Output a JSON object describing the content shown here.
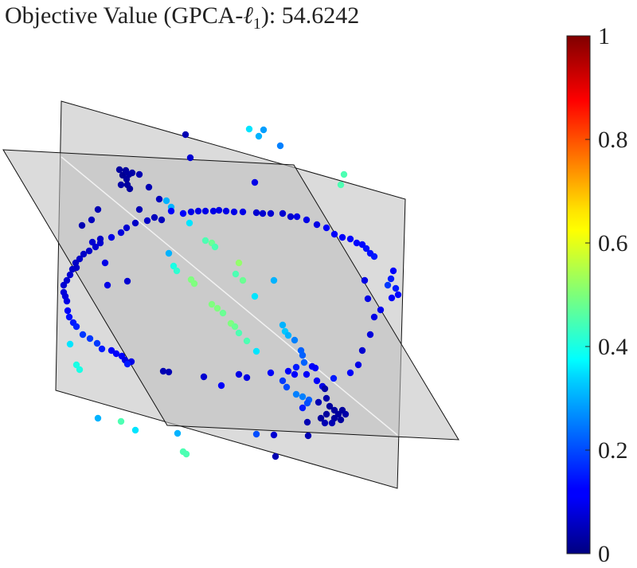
{
  "title": {
    "prefix": "Objective Value (GPCA-",
    "ell": "ℓ",
    "sub": "1",
    "suffix": "): 54.6242"
  },
  "chart_data": {
    "type": "scatter",
    "title": "Objective Value (GPCA-ℓ1): 54.6242",
    "xlabel": "",
    "ylabel": "",
    "grid": false,
    "colormap": "jet",
    "colorbar": {
      "min": 0,
      "max": 1,
      "ticks": [
        0,
        0.2,
        0.4,
        0.6,
        0.8,
        1
      ],
      "tick_labels": [
        "0",
        "0.2",
        "0.4",
        "0.6",
        "0.8",
        "1"
      ]
    },
    "planes": [
      {
        "name": "plane-a",
        "color": "#bdbdbd"
      },
      {
        "name": "plane-b",
        "color": "#bdbdbd"
      }
    ],
    "points": [
      [
        233,
        169,
        0.05
      ],
      [
        313,
        162,
        0.35
      ],
      [
        325,
        171,
        0.3
      ],
      [
        331,
        163,
        0.28
      ],
      [
        352,
        183,
        0.25
      ],
      [
        239,
        198,
        0.08
      ],
      [
        432,
        219,
        0.45
      ],
      [
        428,
        232,
        0.45
      ],
      [
        320,
        229,
        0.1
      ],
      [
        150,
        213,
        0.03
      ],
      [
        154,
        220,
        0.02
      ],
      [
        158,
        214,
        0.03
      ],
      [
        162,
        219,
        0.03
      ],
      [
        166,
        217,
        0.04
      ],
      [
        159,
        225,
        0.03
      ],
      [
        152,
        232,
        0.04
      ],
      [
        175,
        219,
        0.05
      ],
      [
        187,
        235,
        0.05
      ],
      [
        160,
        232,
        0.03
      ],
      [
        163,
        237,
        0.03
      ],
      [
        200,
        250,
        0.06
      ],
      [
        209,
        252,
        0.3
      ],
      [
        215,
        260,
        0.3
      ],
      [
        175,
        263,
        0.05
      ],
      [
        123,
        263,
        0.05
      ],
      [
        115,
        276,
        0.06
      ],
      [
        103,
        283,
        0.05
      ],
      [
        194,
        273,
        0.06
      ],
      [
        203,
        276,
        0.06
      ],
      [
        185,
        277,
        0.07
      ],
      [
        170,
        280,
        0.07
      ],
      [
        159,
        286,
        0.08
      ],
      [
        152,
        292,
        0.09
      ],
      [
        140,
        298,
        0.1
      ],
      [
        126,
        305,
        0.08
      ],
      [
        120,
        310,
        0.08
      ],
      [
        112,
        315,
        0.07
      ],
      [
        105,
        319,
        0.07
      ],
      [
        100,
        325,
        0.07
      ],
      [
        95,
        330,
        0.07
      ],
      [
        91,
        338,
        0.07
      ],
      [
        88,
        345,
        0.08
      ],
      [
        84,
        352,
        0.08
      ],
      [
        80,
        358,
        0.08
      ],
      [
        80,
        367,
        0.09
      ],
      [
        82,
        372,
        0.09
      ],
      [
        84,
        378,
        0.1
      ],
      [
        85,
        390,
        0.12
      ],
      [
        87,
        398,
        0.14
      ],
      [
        92,
        405,
        0.15
      ],
      [
        96,
        410,
        0.16
      ],
      [
        104,
        420,
        0.18
      ],
      [
        113,
        425,
        0.18
      ],
      [
        122,
        431,
        0.18
      ],
      [
        128,
        438,
        0.15
      ],
      [
        140,
        440,
        0.12
      ],
      [
        146,
        444,
        0.12
      ],
      [
        153,
        447,
        0.12
      ],
      [
        157,
        452,
        0.1
      ],
      [
        165,
        454,
        0.1
      ],
      [
        215,
        265,
        0.12
      ],
      [
        230,
        268,
        0.12
      ],
      [
        240,
        266,
        0.1
      ],
      [
        249,
        265,
        0.1
      ],
      [
        258,
        265,
        0.1
      ],
      [
        268,
        265,
        0.1
      ],
      [
        275,
        264,
        0.1
      ],
      [
        284,
        265,
        0.1
      ],
      [
        294,
        266,
        0.1
      ],
      [
        305,
        266,
        0.1
      ],
      [
        322,
        267,
        0.08
      ],
      [
        330,
        268,
        0.08
      ],
      [
        340,
        268,
        0.08
      ],
      [
        355,
        268,
        0.08
      ],
      [
        365,
        272,
        0.08
      ],
      [
        373,
        272,
        0.1
      ],
      [
        385,
        276,
        0.1
      ],
      [
        398,
        282,
        0.1
      ],
      [
        410,
        286,
        0.12
      ],
      [
        420,
        294,
        0.12
      ],
      [
        430,
        298,
        0.12
      ],
      [
        440,
        300,
        0.13
      ],
      [
        448,
        305,
        0.13
      ],
      [
        455,
        307,
        0.13
      ],
      [
        460,
        312,
        0.14
      ],
      [
        465,
        318,
        0.14
      ],
      [
        470,
        322,
        0.15
      ],
      [
        494,
        340,
        0.12
      ],
      [
        491,
        350,
        0.15
      ],
      [
        487,
        358,
        0.18
      ],
      [
        497,
        362,
        0.15
      ],
      [
        500,
        370,
        0.13
      ],
      [
        492,
        374,
        0.12
      ],
      [
        458,
        352,
        0.1
      ],
      [
        462,
        375,
        0.1
      ],
      [
        470,
        398,
        0.1
      ],
      [
        478,
        389,
        0.11
      ],
      [
        465,
        420,
        0.09
      ],
      [
        455,
        440,
        0.08
      ],
      [
        450,
        458,
        0.1
      ],
      [
        440,
        468,
        0.12
      ],
      [
        238,
        280,
        0.35
      ],
      [
        258,
        302,
        0.45
      ],
      [
        266,
        305,
        0.48
      ],
      [
        270,
        310,
        0.45
      ],
      [
        212,
        318,
        0.3
      ],
      [
        218,
        334,
        0.4
      ],
      [
        222,
        340,
        0.42
      ],
      [
        240,
        351,
        0.5
      ],
      [
        244,
        356,
        0.5
      ],
      [
        300,
        330,
        0.52
      ],
      [
        296,
        344,
        0.45
      ],
      [
        305,
        352,
        0.48
      ],
      [
        344,
        352,
        0.3
      ],
      [
        320,
        372,
        0.35
      ],
      [
        266,
        382,
        0.5
      ],
      [
        273,
        387,
        0.5
      ],
      [
        280,
        393,
        0.48
      ],
      [
        290,
        406,
        0.5
      ],
      [
        295,
        410,
        0.48
      ],
      [
        300,
        418,
        0.45
      ],
      [
        310,
        428,
        0.45
      ],
      [
        322,
        441,
        0.35
      ],
      [
        355,
        408,
        0.3
      ],
      [
        358,
        416,
        0.32
      ],
      [
        362,
        421,
        0.3
      ],
      [
        370,
        427,
        0.25
      ],
      [
        378,
        440,
        0.22
      ],
      [
        380,
        446,
        0.22
      ],
      [
        382,
        455,
        0.22
      ],
      [
        372,
        461,
        0.15
      ],
      [
        362,
        466,
        0.12
      ],
      [
        370,
        470,
        0.12
      ],
      [
        385,
        470,
        0.12
      ],
      [
        392,
        460,
        0.12
      ],
      [
        396,
        462,
        0.12
      ],
      [
        398,
        478,
        0.12
      ],
      [
        405,
        485,
        0.1
      ],
      [
        419,
        475,
        0.15
      ],
      [
        355,
        478,
        0.18
      ],
      [
        360,
        486,
        0.2
      ],
      [
        372,
        495,
        0.25
      ],
      [
        380,
        498,
        0.25
      ],
      [
        388,
        502,
        0.22
      ],
      [
        386,
        506,
        0.2
      ],
      [
        380,
        512,
        0.15
      ],
      [
        400,
        505,
        0.05
      ],
      [
        408,
        488,
        0.04
      ],
      [
        410,
        500,
        0.04
      ],
      [
        414,
        510,
        0.03
      ],
      [
        420,
        515,
        0.03
      ],
      [
        425,
        520,
        0.03
      ],
      [
        430,
        515,
        0.03
      ],
      [
        434,
        520,
        0.04
      ],
      [
        420,
        525,
        0.03
      ],
      [
        428,
        527,
        0.03
      ],
      [
        410,
        520,
        0.03
      ],
      [
        403,
        525,
        0.03
      ],
      [
        408,
        531,
        0.05
      ],
      [
        417,
        531,
        0.05
      ],
      [
        386,
        530,
        0.05
      ],
      [
        205,
        466,
        0.05
      ],
      [
        212,
        467,
        0.05
      ],
      [
        160,
        457,
        0.15
      ],
      [
        100,
        464,
        0.4
      ],
      [
        96,
        458,
        0.4
      ],
      [
        88,
        432,
        0.35
      ],
      [
        135,
        358,
        0.1
      ],
      [
        160,
        353,
        0.08
      ],
      [
        256,
        473,
        0.08
      ],
      [
        300,
        470,
        0.1
      ],
      [
        278,
        484,
        0.12
      ],
      [
        310,
        474,
        0.1
      ],
      [
        340,
        468,
        0.12
      ],
      [
        152,
        529,
        0.45
      ],
      [
        170,
        540,
        0.35
      ],
      [
        223,
        544,
        0.3
      ],
      [
        230,
        567,
        0.45
      ],
      [
        234,
        570,
        0.45
      ],
      [
        322,
        545,
        0.2
      ],
      [
        344,
        546,
        0.08
      ],
      [
        387,
        547,
        0.05
      ],
      [
        346,
        573,
        0.05
      ],
      [
        123,
        525,
        0.3
      ],
      [
        132,
        330,
        0.1
      ],
      [
        116,
        304,
        0.08
      ],
      [
        126,
        300,
        0.07
      ],
      [
        96,
        336,
        0.07
      ]
    ]
  }
}
